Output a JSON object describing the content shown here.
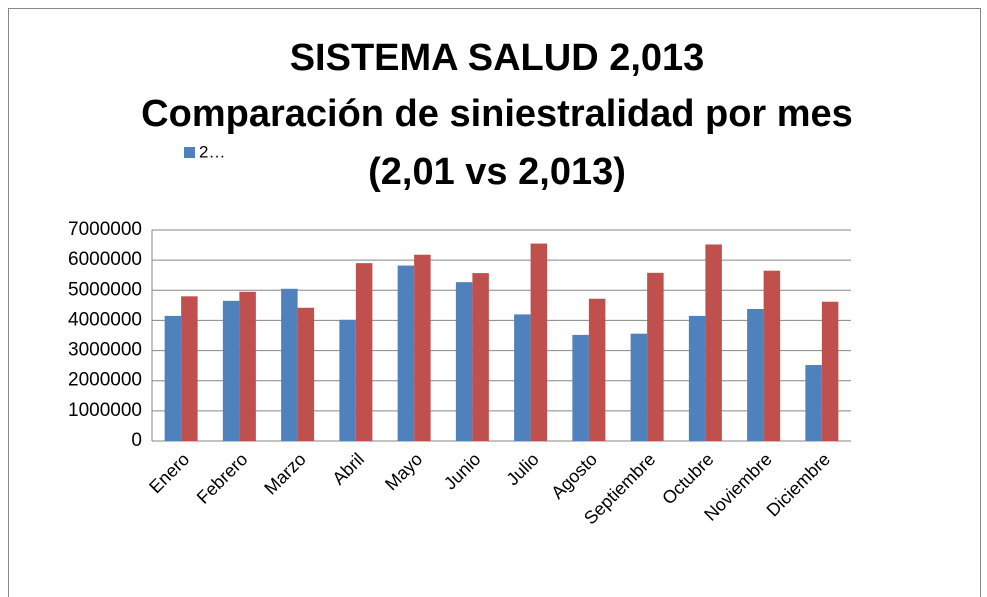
{
  "chart_data": {
    "type": "bar",
    "title": [
      "SISTEMA SALUD 2,013",
      "Comparación de siniestralidad por mes",
      "(2,01 vs 2,013)"
    ],
    "categories": [
      "Enero",
      "Febrero",
      "Marzo",
      "Abril",
      "Mayo",
      "Junio",
      "Julio",
      "Agosto",
      "Septiembre",
      "Octubre",
      "Noviembre",
      "Diciembre"
    ],
    "series": [
      {
        "name": "2…",
        "color": "#4f81bd",
        "values": [
          4150000,
          4650000,
          5050000,
          4020000,
          5820000,
          5270000,
          4200000,
          3520000,
          3560000,
          4150000,
          4380000,
          2520000
        ]
      },
      {
        "color": "#c0504d",
        "values": [
          4800000,
          4950000,
          4420000,
          5900000,
          6180000,
          5570000,
          6550000,
          4720000,
          5580000,
          6520000,
          5650000,
          4620000
        ]
      }
    ],
    "ylim": [
      0,
      7000000
    ],
    "yticks": [
      0,
      1000000,
      2000000,
      3000000,
      4000000,
      5000000,
      6000000,
      7000000
    ],
    "grid": true
  }
}
